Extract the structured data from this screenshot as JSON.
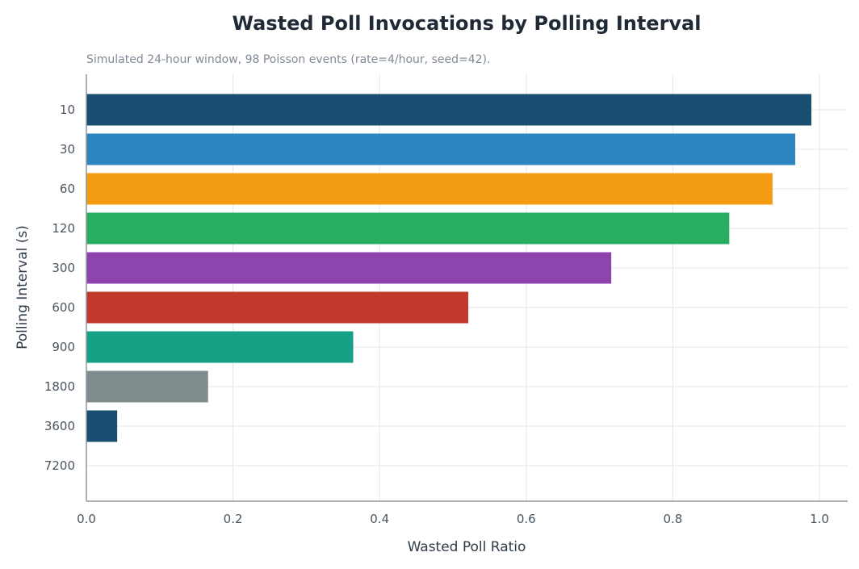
{
  "chart_data": {
    "type": "bar",
    "orientation": "horizontal",
    "title": "Wasted Poll Invocations by Polling Interval",
    "subtitle": "Simulated 24-hour window, 98 Poisson events (rate=4/hour, seed=42).",
    "xlabel": "Wasted Poll Ratio",
    "ylabel": "Polling Interval (s)",
    "xlim": [
      0,
      1.0
    ],
    "xticks": [
      "0.0",
      "0.2",
      "0.4",
      "0.6",
      "0.8",
      "1.0"
    ],
    "grid": true,
    "categories": [
      "10",
      "30",
      "60",
      "120",
      "300",
      "600",
      "900",
      "1800",
      "3600",
      "7200"
    ],
    "values": [
      0.989,
      0.967,
      0.936,
      0.877,
      0.716,
      0.521,
      0.364,
      0.166,
      0.042,
      0.0
    ],
    "colors": [
      "#1b4f72",
      "#2e86c1",
      "#f39c12",
      "#27ae60",
      "#8e44ad",
      "#c0392b",
      "#16a085",
      "#7f8c8d",
      "#1b4f72",
      "#2e86c1"
    ]
  }
}
